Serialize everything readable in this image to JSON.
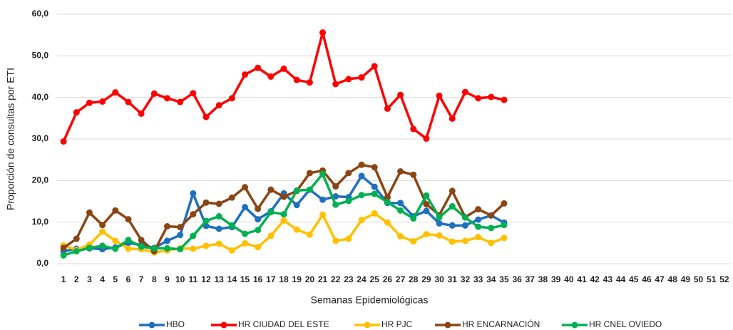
{
  "chart_data": {
    "type": "line",
    "y_label": "Proporción de consultas por ETI",
    "x_label": "Semanas Epidemiológicas",
    "categories": [
      "1",
      "2",
      "3",
      "4",
      "5",
      "6",
      "7",
      "8",
      "9",
      "10",
      "11",
      "12",
      "13",
      "14",
      "15",
      "16",
      "17",
      "18",
      "19",
      "20",
      "21",
      "22",
      "23",
      "24",
      "25",
      "26",
      "27",
      "28",
      "29",
      "30",
      "31",
      "32",
      "33",
      "34",
      "35",
      "36",
      "37",
      "38",
      "39",
      "40",
      "41",
      "42",
      "43",
      "44",
      "45",
      "46",
      "47",
      "48",
      "49",
      "50",
      "51",
      "52"
    ],
    "ylim": [
      0,
      60
    ],
    "yticks": [
      {
        "value": 0,
        "label": "0,0"
      },
      {
        "value": 10,
        "label": "10,0"
      },
      {
        "value": 20,
        "label": "20,0"
      },
      {
        "value": 30,
        "label": "30,0"
      },
      {
        "value": 40,
        "label": "40,0"
      },
      {
        "value": 50,
        "label": "50,0"
      },
      {
        "value": 60,
        "label": "60,0"
      }
    ],
    "grid": true,
    "legend": "bottom",
    "series": [
      {
        "name": "HBO",
        "color": "#1f6fbf",
        "values": [
          3.0,
          3.6,
          3.7,
          3.5,
          3.9,
          5.0,
          4.5,
          3.8,
          5.5,
          6.9,
          16.9,
          9.1,
          8.4,
          8.8,
          13.6,
          10.7,
          12.6,
          16.9,
          14.1,
          17.8,
          15.4,
          16.2,
          16.0,
          21.1,
          18.5,
          14.6,
          14.6,
          11.4,
          12.7,
          9.7,
          9.2,
          9.2,
          10.6,
          11.6,
          9.9,
          null,
          null,
          null,
          null,
          null,
          null,
          null,
          null,
          null,
          null,
          null,
          null,
          null,
          null,
          null,
          null,
          null
        ]
      },
      {
        "name": "HR CIUDAD DEL ESTE",
        "color": "#ff0000",
        "values": [
          29.4,
          36.4,
          38.7,
          39.0,
          41.2,
          38.9,
          36.1,
          40.9,
          39.8,
          38.9,
          41.0,
          35.3,
          38.1,
          39.8,
          45.5,
          47.1,
          45.0,
          46.9,
          44.2,
          43.6,
          55.6,
          43.2,
          44.4,
          44.8,
          47.5,
          37.3,
          40.6,
          32.4,
          30.1,
          40.4,
          34.9,
          41.3,
          39.8,
          40.1,
          39.4,
          null,
          null,
          null,
          null,
          null,
          null,
          null,
          null,
          null,
          null,
          null,
          null,
          null,
          null,
          null,
          null,
          null
        ]
      },
      {
        "name": "HR PJC",
        "color": "#ffc000",
        "values": [
          4.4,
          3.3,
          4.6,
          7.7,
          5.5,
          3.6,
          3.5,
          2.7,
          3.2,
          3.7,
          3.6,
          4.3,
          4.8,
          3.2,
          4.9,
          4.0,
          6.7,
          10.4,
          8.2,
          7.0,
          11.8,
          5.5,
          6.0,
          10.5,
          12.1,
          9.9,
          6.6,
          5.4,
          7.1,
          6.8,
          5.3,
          5.5,
          6.4,
          5.0,
          6.2,
          null,
          null,
          null,
          null,
          null,
          null,
          null,
          null,
          null,
          null,
          null,
          null,
          null,
          null,
          null,
          null,
          null
        ]
      },
      {
        "name": "HR ENCARNACIÓN",
        "color": "#8b4513",
        "values": [
          3.8,
          6.0,
          12.3,
          9.3,
          12.8,
          10.7,
          5.7,
          3.0,
          9.0,
          8.8,
          11.9,
          14.7,
          14.4,
          15.9,
          18.4,
          13.2,
          17.8,
          16.1,
          17.5,
          21.8,
          22.4,
          18.6,
          21.8,
          23.8,
          23.2,
          16.0,
          22.2,
          21.4,
          14.3,
          11.7,
          17.5,
          11.2,
          13.1,
          11.6,
          14.5,
          null,
          null,
          null,
          null,
          null,
          null,
          null,
          null,
          null,
          null,
          null,
          null,
          null,
          null,
          null,
          null,
          null
        ]
      },
      {
        "name": "HR CNEL OVIEDO",
        "color": "#00b050",
        "values": [
          2.0,
          3.0,
          3.8,
          4.3,
          3.6,
          5.7,
          4.1,
          3.7,
          3.7,
          3.5,
          6.7,
          10.3,
          11.4,
          9.2,
          7.2,
          8.1,
          12.4,
          11.9,
          17.6,
          17.8,
          21.6,
          14.2,
          15.1,
          16.5,
          16.8,
          14.8,
          12.8,
          10.9,
          16.4,
          11.2,
          13.8,
          11.1,
          8.9,
          8.6,
          9.3,
          null,
          null,
          null,
          null,
          null,
          null,
          null,
          null,
          null,
          null,
          null,
          null,
          null,
          null,
          null,
          null,
          null
        ]
      }
    ]
  }
}
